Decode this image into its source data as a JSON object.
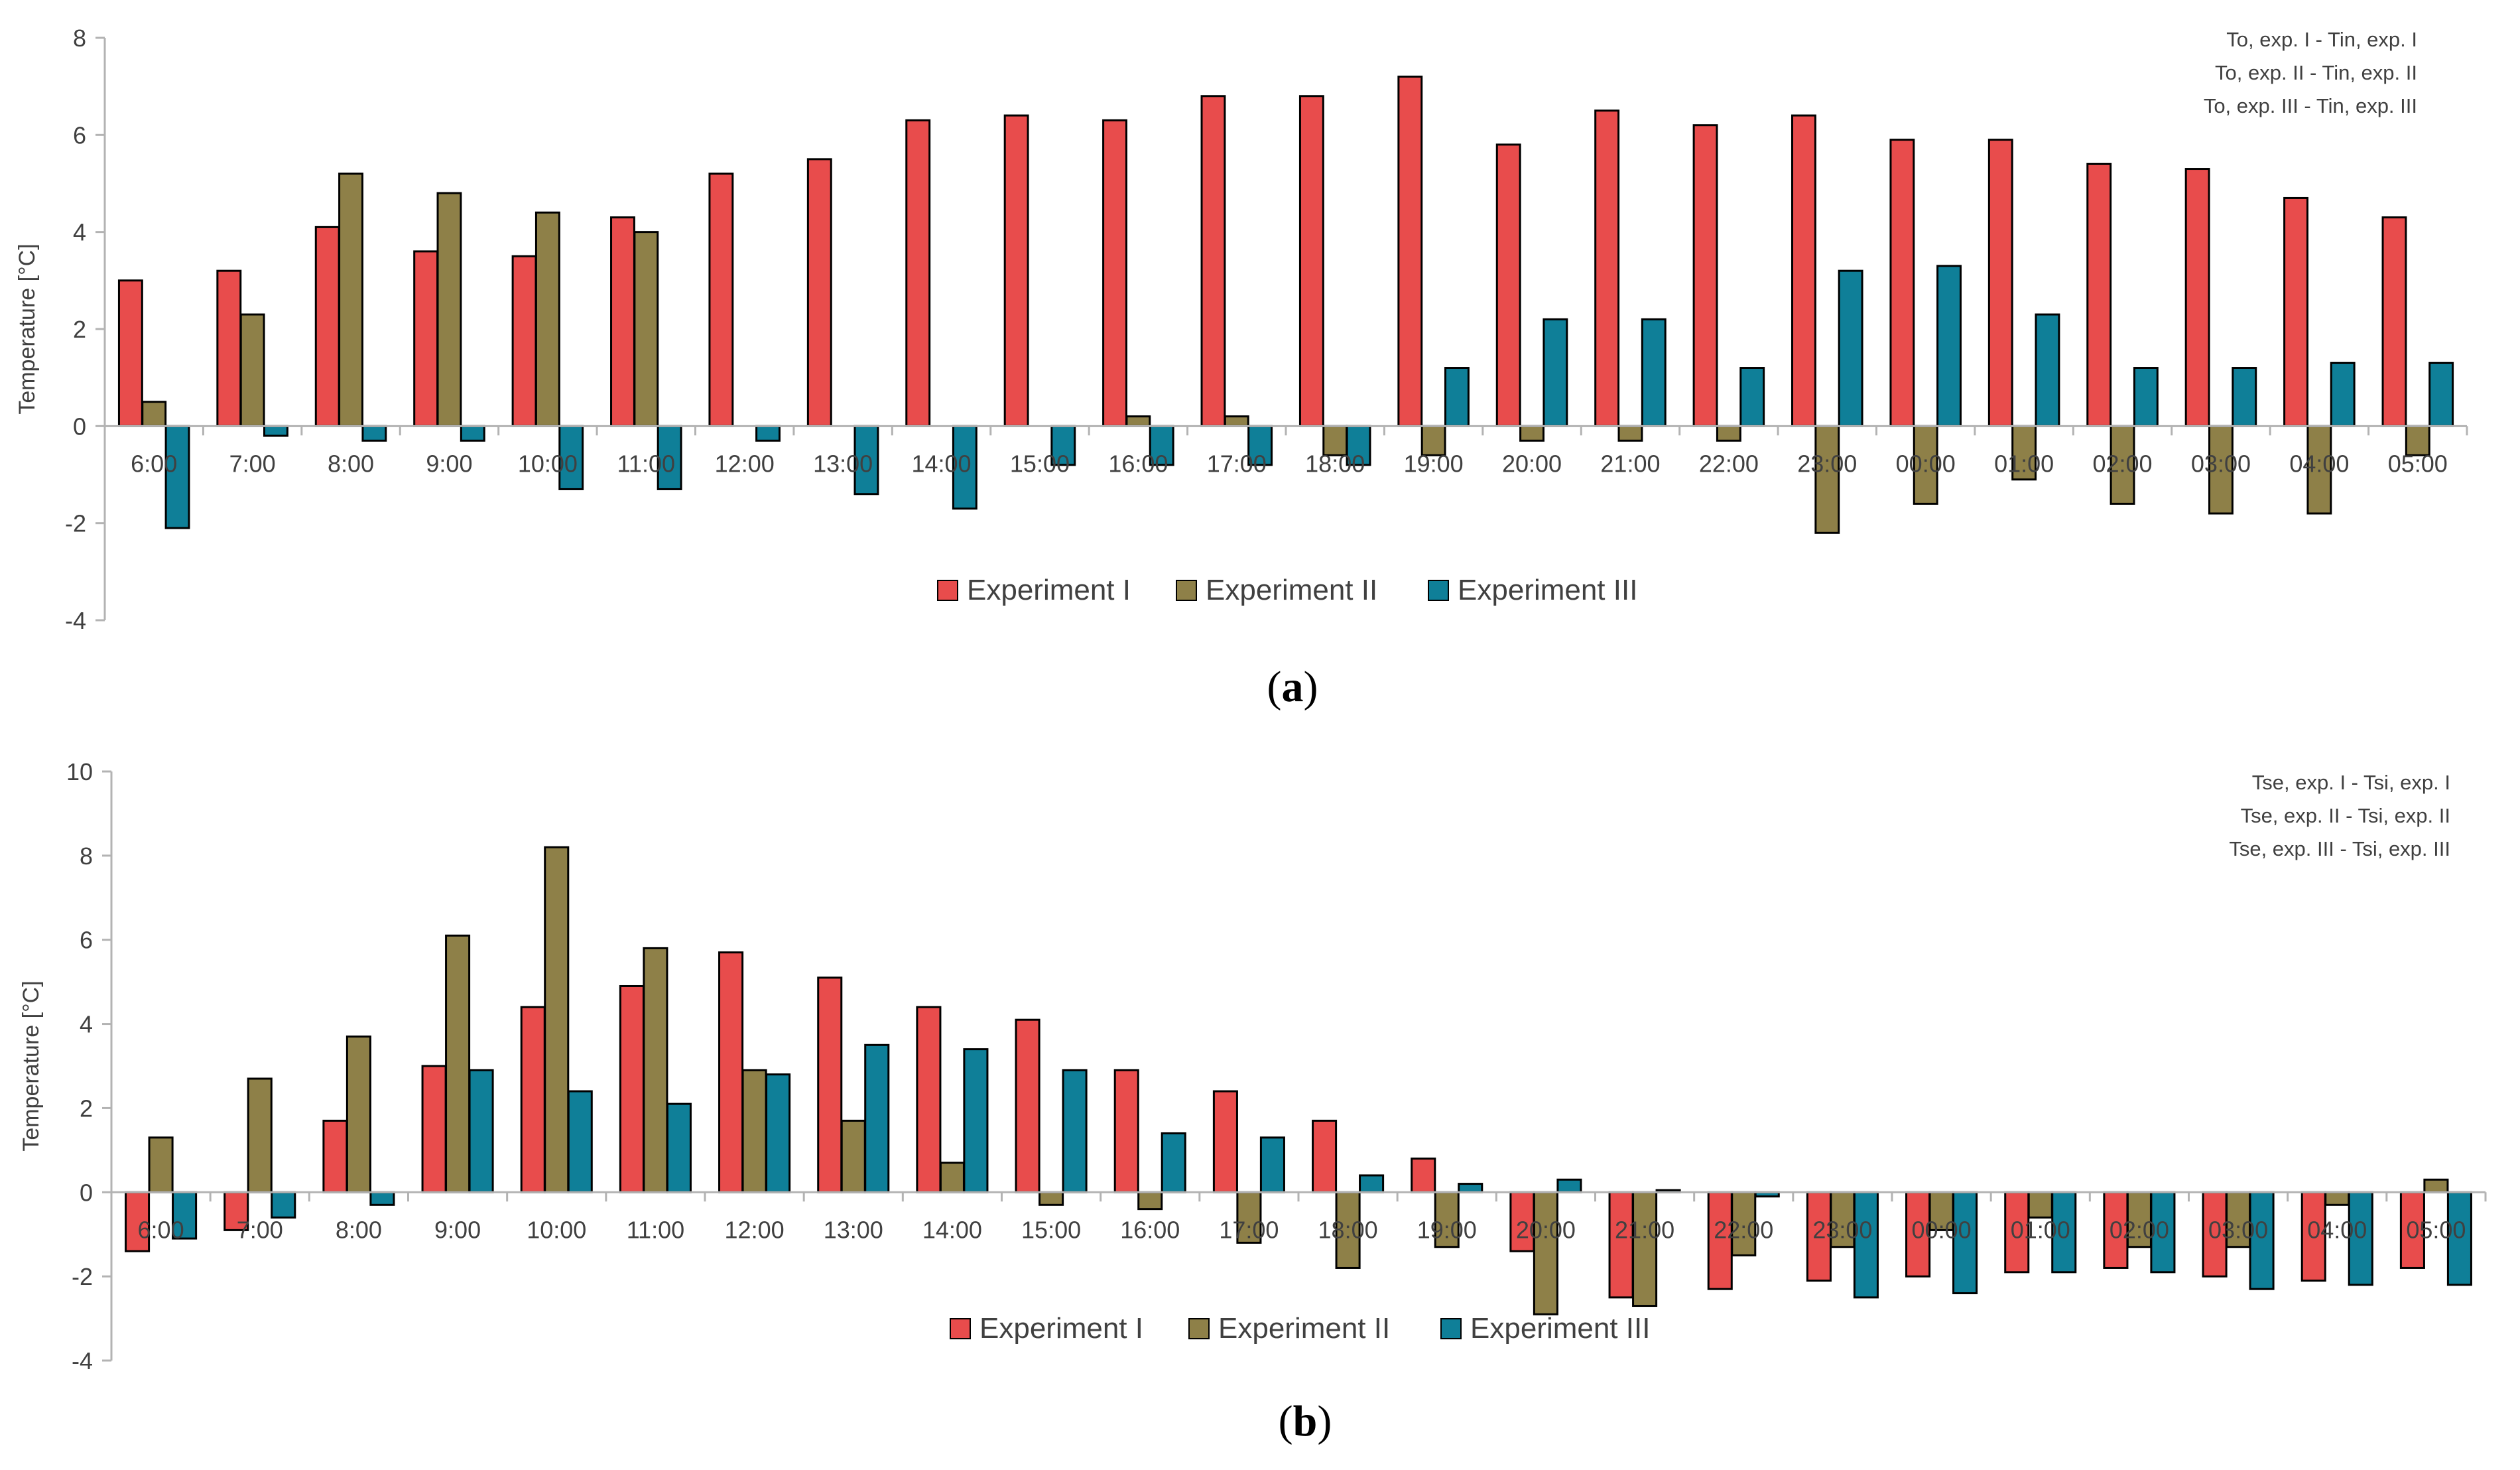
{
  "colors": {
    "experiment_1": "#e84c4c",
    "experiment_2": "#8e8048",
    "experiment_3": "#0f7f98",
    "axis": "#b3b3b3",
    "text": "#404040"
  },
  "chart_data": [
    {
      "type": "bar",
      "panel_label": "a",
      "ylabel": "Temperature [°C]",
      "xlabel": "",
      "ylim": [
        -4,
        8
      ],
      "yticks": [
        -4,
        -2,
        0,
        2,
        4,
        6,
        8
      ],
      "grid": false,
      "legend_position": "bottom-center",
      "annotations": [
        "To, exp. I - Tin, exp. I",
        "To, exp. II - Tin, exp. II",
        "To, exp. III - Tin, exp. III"
      ],
      "categories": [
        "6:00",
        "7:00",
        "8:00",
        "9:00",
        "10:00",
        "11:00",
        "12:00",
        "13:00",
        "14:00",
        "15:00",
        "16:00",
        "17:00",
        "18:00",
        "19:00",
        "20:00",
        "21:00",
        "22:00",
        "23:00",
        "00:00",
        "01:00",
        "02:00",
        "03:00",
        "04:00",
        "05:00"
      ],
      "series": [
        {
          "name": "Experiment I",
          "values": [
            3.0,
            3.2,
            4.1,
            3.6,
            3.5,
            4.3,
            5.2,
            5.5,
            6.3,
            6.4,
            6.3,
            6.8,
            6.8,
            7.2,
            5.8,
            6.5,
            6.2,
            6.4,
            5.9,
            5.9,
            5.4,
            5.3,
            4.7,
            4.3
          ]
        },
        {
          "name": "Experiment II",
          "values": [
            0.5,
            2.3,
            5.2,
            4.8,
            4.4,
            4.0,
            0.0,
            0.0,
            0.0,
            0.0,
            0.2,
            0.2,
            -0.6,
            -0.6,
            -0.3,
            -0.3,
            -0.3,
            -2.2,
            -1.6,
            -1.1,
            -1.6,
            -1.8,
            -1.8,
            -0.6
          ]
        },
        {
          "name": "Experiment III",
          "values": [
            -2.1,
            -0.2,
            -0.3,
            -0.3,
            -1.3,
            -1.3,
            -0.3,
            -1.4,
            -1.7,
            -0.8,
            -0.8,
            -0.8,
            -0.8,
            1.2,
            2.2,
            2.2,
            1.2,
            3.2,
            3.3,
            2.3,
            1.2,
            1.2,
            1.3,
            1.3
          ]
        }
      ]
    },
    {
      "type": "bar",
      "panel_label": "b",
      "ylabel": "Temperature [°C]",
      "xlabel": "",
      "ylim": [
        -4,
        10
      ],
      "yticks": [
        -4,
        -2,
        0,
        2,
        4,
        6,
        8,
        10
      ],
      "grid": false,
      "legend_position": "bottom-center",
      "annotations": [
        "Tse, exp. I - Tsi, exp. I",
        "Tse, exp. II - Tsi, exp. II",
        "Tse, exp. III - Tsi, exp. III"
      ],
      "categories": [
        "6:00",
        "7:00",
        "8:00",
        "9:00",
        "10:00",
        "11:00",
        "12:00",
        "13:00",
        "14:00",
        "15:00",
        "16:00",
        "17:00",
        "18:00",
        "19:00",
        "20:00",
        "21:00",
        "22:00",
        "23:00",
        "00:00",
        "01:00",
        "02:00",
        "03:00",
        "04:00",
        "05:00"
      ],
      "series": [
        {
          "name": "Experiment I",
          "values": [
            -1.4,
            -0.9,
            1.7,
            3.0,
            4.4,
            4.9,
            5.7,
            5.1,
            4.4,
            4.1,
            2.9,
            2.4,
            1.7,
            0.8,
            -1.4,
            -2.5,
            -2.3,
            -2.1,
            -2.0,
            -1.9,
            -1.8,
            -2.0,
            -2.1,
            -1.8
          ]
        },
        {
          "name": "Experiment II",
          "values": [
            1.3,
            2.7,
            3.7,
            6.1,
            8.2,
            5.8,
            2.9,
            1.7,
            0.7,
            -0.3,
            -0.4,
            -1.2,
            -1.8,
            -1.3,
            -2.9,
            -2.7,
            -1.5,
            -1.3,
            -0.9,
            -0.6,
            -1.3,
            -1.3,
            -0.3,
            0.3
          ]
        },
        {
          "name": "Experiment III",
          "values": [
            -1.1,
            -0.6,
            -0.3,
            2.9,
            2.4,
            2.1,
            2.8,
            3.5,
            3.4,
            2.9,
            1.4,
            1.3,
            0.4,
            0.2,
            0.3,
            0.05,
            -0.1,
            -2.5,
            -2.4,
            -1.9,
            -1.9,
            -2.3,
            -2.2,
            -2.2
          ]
        }
      ]
    }
  ]
}
